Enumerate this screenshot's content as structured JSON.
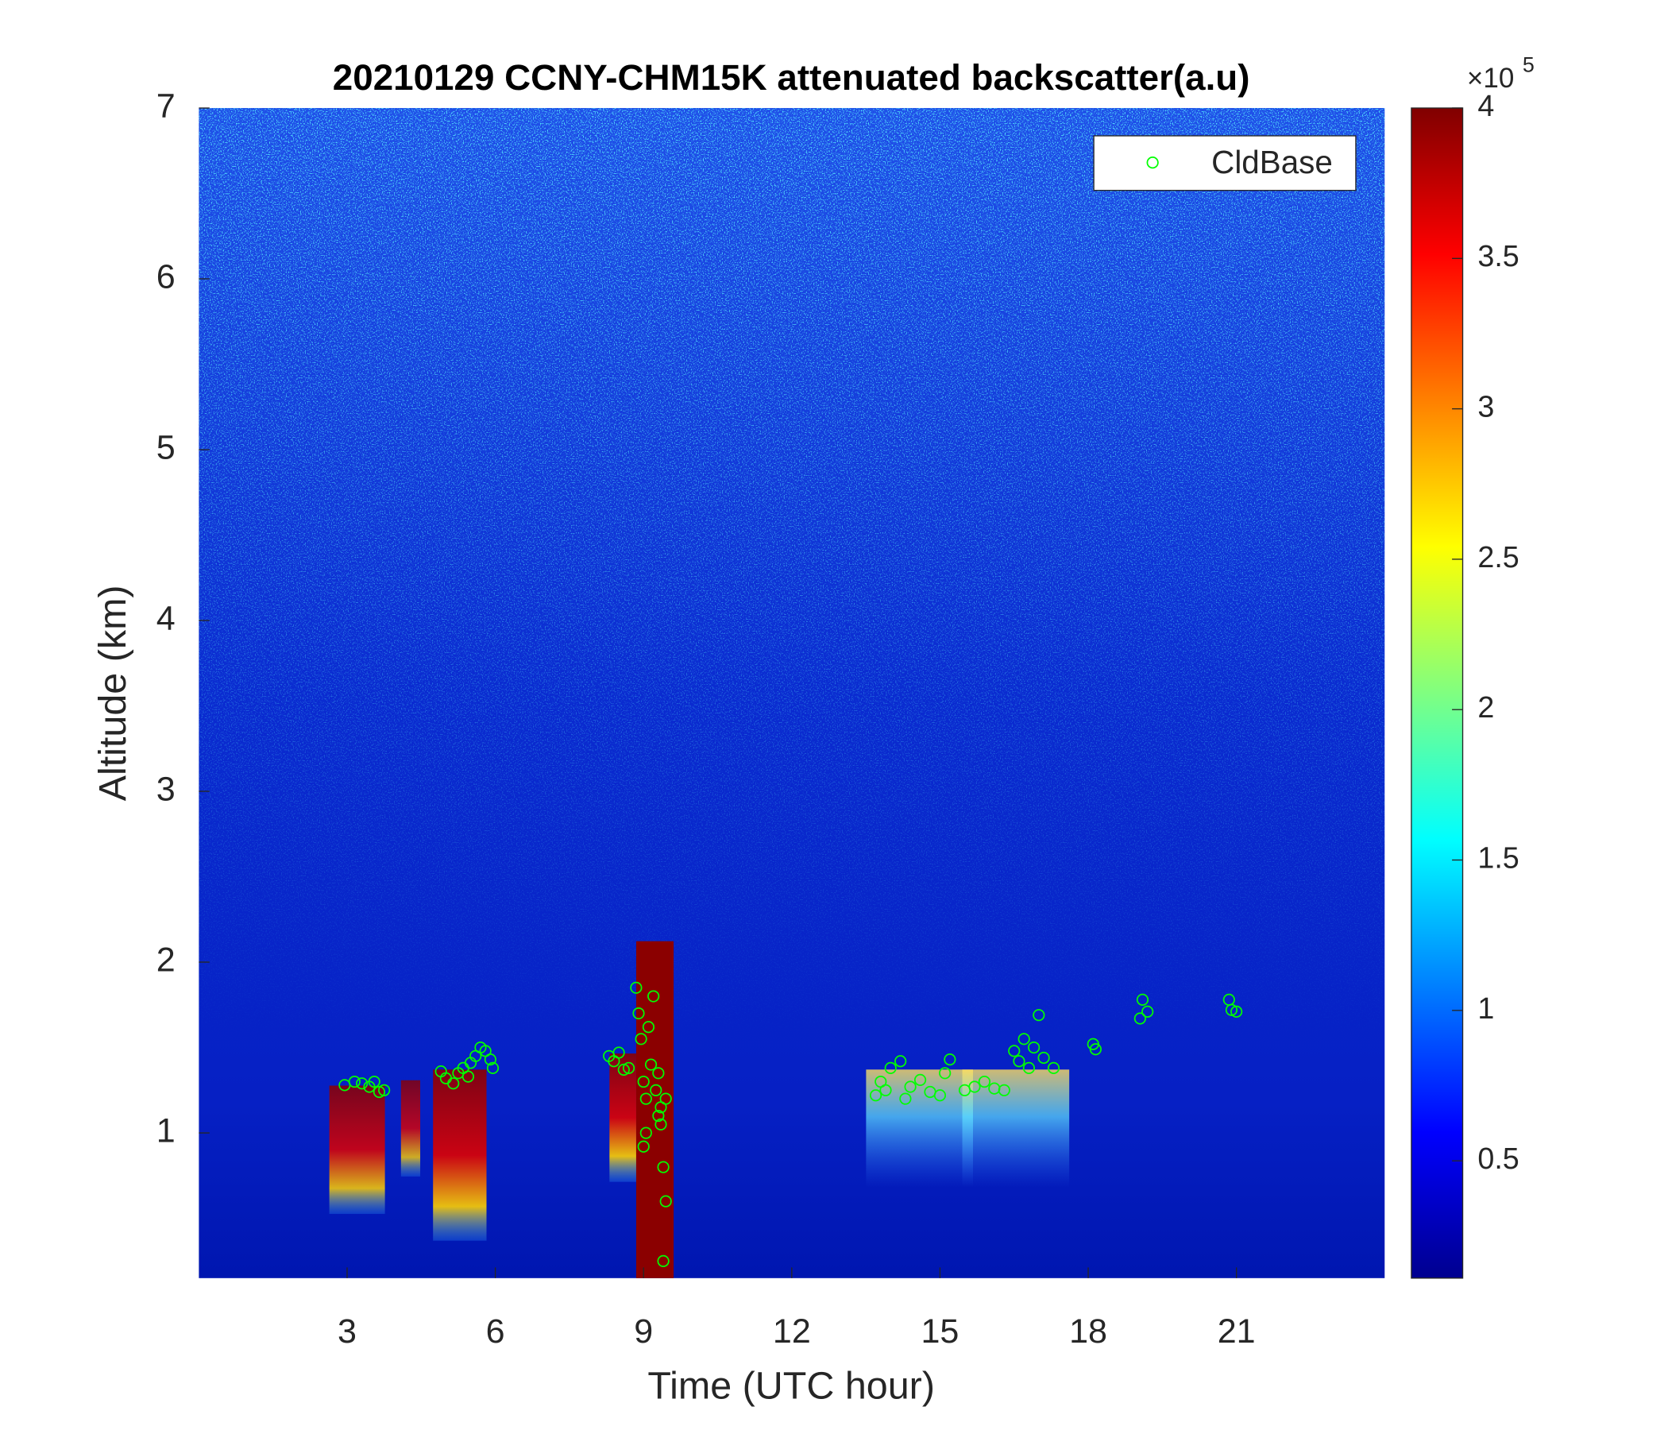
{
  "chart_data": {
    "type": "scatter",
    "title": "20210129 CCNY-CHM15K attenuated backscatter(a.u)",
    "xlabel": "Time (UTC hour)",
    "ylabel": "Altitude (km)",
    "xlim": [
      0,
      24
    ],
    "ylim": [
      0.15,
      7
    ],
    "xticks": [
      3,
      6,
      9,
      12,
      15,
      18,
      21
    ],
    "yticks": [
      1,
      2,
      3,
      4,
      5,
      6,
      7
    ],
    "legend": "upper right",
    "colorbar": {
      "colormap": "jet",
      "lim": [
        0.11,
        4
      ],
      "ticks": [
        0.5,
        1,
        1.5,
        2,
        2.5,
        3,
        3.5,
        4
      ],
      "scale_label": "×10",
      "scale_exponent": "5"
    },
    "series": [
      {
        "name": "CldBase",
        "color": "#00ff00",
        "x": [
          2.95,
          3.15,
          3.3,
          3.45,
          3.55,
          3.65,
          3.75,
          4.9,
          5.0,
          5.15,
          5.25,
          5.35,
          5.45,
          5.5,
          5.6,
          5.7,
          5.8,
          5.9,
          5.95,
          8.3,
          8.4,
          8.5,
          8.6,
          8.7,
          8.85,
          8.9,
          8.95,
          9.0,
          9.05,
          9.1,
          9.15,
          9.2,
          9.25,
          9.3,
          9.35,
          9.4,
          9.45,
          9.4,
          9.0,
          9.05,
          9.3,
          9.35,
          9.45,
          13.7,
          13.8,
          13.9,
          14.0,
          14.2,
          14.3,
          14.4,
          14.6,
          14.8,
          15.0,
          15.1,
          15.2,
          15.5,
          15.7,
          15.9,
          16.1,
          16.3,
          16.5,
          16.6,
          16.7,
          16.8,
          16.9,
          17.0,
          17.1,
          17.3,
          18.1,
          18.15,
          19.1,
          19.05,
          19.2,
          20.85,
          20.9,
          21.0
        ],
        "values": [
          1.28,
          1.3,
          1.29,
          1.27,
          1.3,
          1.24,
          1.25,
          1.36,
          1.32,
          1.29,
          1.35,
          1.38,
          1.33,
          1.41,
          1.45,
          1.5,
          1.48,
          1.43,
          1.38,
          1.45,
          1.42,
          1.47,
          1.37,
          1.38,
          1.85,
          1.7,
          1.55,
          1.3,
          1.2,
          1.62,
          1.4,
          1.8,
          1.25,
          1.1,
          1.05,
          0.8,
          0.6,
          0.25,
          0.92,
          1.0,
          1.35,
          1.15,
          1.2,
          1.22,
          1.3,
          1.25,
          1.38,
          1.42,
          1.2,
          1.27,
          1.31,
          1.24,
          1.22,
          1.35,
          1.43,
          1.25,
          1.27,
          1.3,
          1.26,
          1.25,
          1.48,
          1.42,
          1.55,
          1.38,
          1.5,
          1.69,
          1.44,
          1.38,
          1.52,
          1.49,
          1.78,
          1.67,
          1.71,
          1.78,
          1.72,
          1.71
        ]
      }
    ]
  }
}
